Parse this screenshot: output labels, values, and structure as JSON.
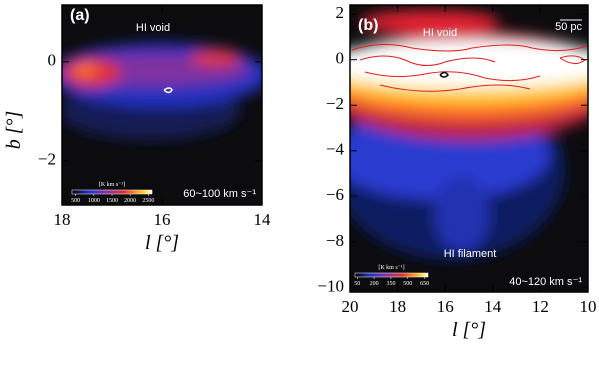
{
  "chart_data": [
    {
      "type": "image",
      "panel_label": "(a)",
      "xlabel": "l [°]",
      "ylabel": "b [°]",
      "xlim": [
        18,
        14
      ],
      "xticks": [
        18,
        16,
        14
      ],
      "ylim": [
        -2.9,
        1.15
      ],
      "yticks": [
        0,
        {
          "value": -2,
          "label": "−2"
        }
      ],
      "annotations": [
        "HI void",
        "60~100 km s⁻¹"
      ],
      "colorbar": {
        "label": "[K km s⁻¹]",
        "lim": [
          400,
          2600
        ],
        "ticks": [
          500,
          1000,
          1500,
          2000,
          2500
        ]
      }
    },
    {
      "type": "image",
      "panel_label": "(b)",
      "xlabel": "l [°]",
      "xlim": [
        20,
        10
      ],
      "xticks": [
        20,
        18,
        16,
        14,
        12,
        10
      ],
      "ylim": [
        -10.2,
        2.4
      ],
      "yticks": [
        2,
        0,
        {
          "value": -2,
          "label": "−2"
        },
        {
          "value": -4,
          "label": "−4"
        },
        {
          "value": -6,
          "label": "−6"
        },
        {
          "value": -8,
          "label": "−8"
        },
        {
          "value": -10,
          "label": "−10"
        }
      ],
      "annotations": [
        "HI void",
        "50 pc",
        "HI filament",
        "40~120 km s⁻¹"
      ],
      "colorbar": {
        "label": "[K km s⁻¹]",
        "lim": [
          30,
          680
        ],
        "ticks": [
          50,
          200,
          350,
          500,
          650
        ]
      }
    }
  ]
}
